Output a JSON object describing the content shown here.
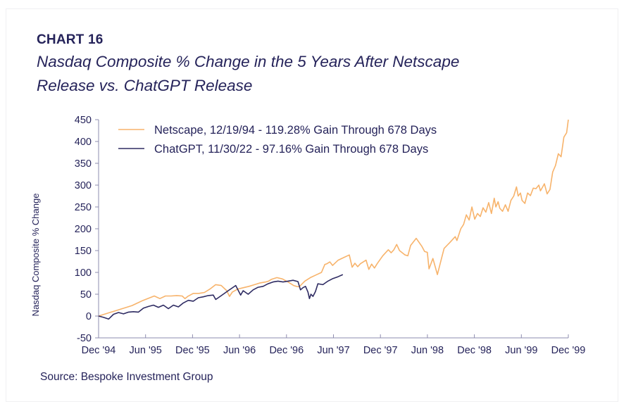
{
  "header": {
    "label": "CHART 16",
    "title": "Nasdaq Composite % Change in the 5 Years After Netscape Release vs. ChatGPT Release"
  },
  "source": "Source:  Bespoke Investment Group",
  "colors": {
    "netscape": "#f7b36b",
    "chatgpt": "#2e2b62",
    "axis": "#8e8caf",
    "text": "#25235a"
  },
  "chart_data": {
    "type": "line",
    "title": "Nasdaq Composite % Change in the 5 Years After Netscape Release vs. ChatGPT Release",
    "xlabel": "",
    "ylabel": "Nasdaq Composite % Change",
    "ylim": [
      -50,
      450
    ],
    "yticks": [
      450,
      400,
      350,
      300,
      250,
      200,
      150,
      100,
      50,
      0,
      -50
    ],
    "x_unit": "months after Dec '94",
    "xlim": [
      0,
      60
    ],
    "xticks": [
      {
        "pos": 0,
        "label": "Dec '94"
      },
      {
        "pos": 6,
        "label": "Jun '95"
      },
      {
        "pos": 12,
        "label": "Dec '95"
      },
      {
        "pos": 18,
        "label": "Jun '96"
      },
      {
        "pos": 24,
        "label": "Dec '96"
      },
      {
        "pos": 30,
        "label": "Jun '97"
      },
      {
        "pos": 36,
        "label": "Dec '97"
      },
      {
        "pos": 42,
        "label": "Jun '98"
      },
      {
        "pos": 48,
        "label": "Dec '98"
      },
      {
        "pos": 54,
        "label": "Jun '99"
      },
      {
        "pos": 60,
        "label": "Dec '99"
      }
    ],
    "grid": false,
    "legend_position": "top-left",
    "series": [
      {
        "name": "Netscape, 12/19/94 - 119.28% Gain Through 678 Days",
        "key": "netscape",
        "points": [
          [
            0,
            0
          ],
          [
            1,
            4
          ],
          [
            2,
            8
          ],
          [
            3,
            12
          ],
          [
            4,
            16
          ],
          [
            5,
            20
          ],
          [
            6,
            24
          ],
          [
            7,
            30
          ],
          [
            8,
            36
          ],
          [
            9,
            41
          ],
          [
            10,
            46
          ],
          [
            11,
            40
          ],
          [
            12,
            46
          ],
          [
            13,
            46
          ],
          [
            14,
            47
          ],
          [
            15,
            46
          ],
          [
            15.5,
            40
          ],
          [
            16,
            45
          ],
          [
            17,
            52
          ],
          [
            18,
            52
          ],
          [
            19,
            54
          ],
          [
            20,
            62
          ],
          [
            21,
            72
          ],
          [
            22,
            70
          ],
          [
            23,
            58
          ],
          [
            23.5,
            45
          ],
          [
            24,
            55
          ],
          [
            25,
            62
          ],
          [
            26,
            65
          ],
          [
            27,
            68
          ],
          [
            28,
            72
          ],
          [
            29,
            76
          ],
          [
            30,
            78
          ],
          [
            30.5,
            80
          ],
          [
            31,
            84
          ],
          [
            32,
            88
          ],
          [
            33,
            85
          ],
          [
            34,
            78
          ],
          [
            35,
            70
          ],
          [
            35.5,
            68
          ],
          [
            36,
            67
          ],
          [
            37,
            80
          ],
          [
            38,
            88
          ],
          [
            39,
            94
          ],
          [
            40,
            100
          ],
          [
            40.6,
            118
          ],
          [
            41,
            120
          ],
          [
            41.5,
            124
          ],
          [
            42,
            116
          ],
          [
            43,
            128
          ],
          [
            44,
            134
          ],
          [
            45,
            140
          ],
          [
            45.5,
            112
          ],
          [
            46,
            121
          ],
          [
            46.5,
            113
          ],
          [
            47,
            120
          ],
          [
            48,
            128
          ],
          [
            48.5,
            107
          ],
          [
            49,
            119
          ],
          [
            49.5,
            110
          ],
          [
            50,
            120
          ],
          [
            51,
            138
          ],
          [
            52,
            152
          ],
          [
            52.5,
            145
          ],
          [
            53,
            152
          ],
          [
            53.5,
            164
          ],
          [
            54,
            150
          ],
          [
            55,
            140
          ],
          [
            55.5,
            138
          ],
          [
            56,
            162
          ],
          [
            57,
            178
          ],
          [
            58,
            160
          ],
          [
            58.5,
            148
          ],
          [
            59,
            146
          ],
          [
            59.3,
            108
          ],
          [
            60,
            132
          ],
          [
            60.8,
            95
          ],
          [
            61.5,
            130
          ],
          [
            62,
            155
          ],
          [
            63,
            168
          ],
          [
            64,
            182
          ],
          [
            64.3,
            173
          ],
          [
            65,
            200
          ],
          [
            65.5,
            210
          ],
          [
            66,
            232
          ],
          [
            66.5,
            220
          ],
          [
            67,
            250
          ],
          [
            67.5,
            222
          ],
          [
            68,
            235
          ],
          [
            68.5,
            228
          ],
          [
            69,
            248
          ],
          [
            69.5,
            238
          ],
          [
            70,
            260
          ],
          [
            70.5,
            235
          ],
          [
            71,
            270
          ],
          [
            71.3,
            250
          ],
          [
            71.7,
            262
          ],
          [
            72,
            247
          ],
          [
            72.5,
            240
          ],
          [
            73,
            255
          ],
          [
            73.5,
            240
          ],
          [
            74,
            265
          ],
          [
            74.5,
            275
          ],
          [
            75,
            296
          ],
          [
            75.3,
            275
          ],
          [
            75.7,
            282
          ],
          [
            76,
            265
          ],
          [
            76.5,
            258
          ],
          [
            77,
            282
          ],
          [
            77.5,
            276
          ],
          [
            78,
            293
          ],
          [
            78.5,
            292
          ],
          [
            79,
            300
          ],
          [
            79.3,
            287
          ],
          [
            79.7,
            296
          ],
          [
            80,
            303
          ],
          [
            80.5,
            280
          ],
          [
            81,
            290
          ],
          [
            81.5,
            330
          ],
          [
            82,
            345
          ],
          [
            82.5,
            372
          ],
          [
            83,
            365
          ],
          [
            83.5,
            410
          ],
          [
            84,
            420
          ],
          [
            84.3,
            450
          ]
        ]
      },
      {
        "name": "ChatGPT, 11/30/22 - 97.16% Gain Through 678 Days",
        "key": "chatgpt",
        "points": [
          [
            0,
            0
          ],
          [
            1,
            -3
          ],
          [
            2,
            -7
          ],
          [
            3,
            4
          ],
          [
            4,
            8
          ],
          [
            5,
            5
          ],
          [
            6,
            9
          ],
          [
            7,
            10
          ],
          [
            8,
            9
          ],
          [
            9,
            18
          ],
          [
            10,
            22
          ],
          [
            11,
            25
          ],
          [
            12,
            20
          ],
          [
            13,
            25
          ],
          [
            14,
            17
          ],
          [
            15,
            25
          ],
          [
            16,
            21
          ],
          [
            17,
            30
          ],
          [
            18,
            36
          ],
          [
            19,
            34
          ],
          [
            20,
            42
          ],
          [
            21,
            44
          ],
          [
            22,
            47
          ],
          [
            23,
            48
          ],
          [
            23.5,
            38
          ],
          [
            24,
            42
          ],
          [
            25,
            50
          ],
          [
            26,
            58
          ],
          [
            27,
            66
          ],
          [
            27.5,
            70
          ],
          [
            28,
            59
          ],
          [
            28.5,
            48
          ],
          [
            29,
            58
          ],
          [
            30,
            50
          ],
          [
            31,
            60
          ],
          [
            32,
            66
          ],
          [
            33,
            68
          ],
          [
            34,
            74
          ],
          [
            35,
            78
          ],
          [
            36,
            80
          ],
          [
            37,
            78
          ],
          [
            38,
            80
          ],
          [
            39,
            82
          ],
          [
            40,
            79
          ],
          [
            40.5,
            60
          ],
          [
            41,
            65
          ],
          [
            41.5,
            68
          ],
          [
            42,
            55
          ],
          [
            42.3,
            40
          ],
          [
            42.6,
            50
          ],
          [
            43,
            45
          ],
          [
            43.5,
            56
          ],
          [
            44,
            74
          ],
          [
            45,
            72
          ],
          [
            46,
            80
          ],
          [
            47,
            86
          ],
          [
            48,
            90
          ],
          [
            49,
            95
          ]
        ]
      }
    ]
  }
}
